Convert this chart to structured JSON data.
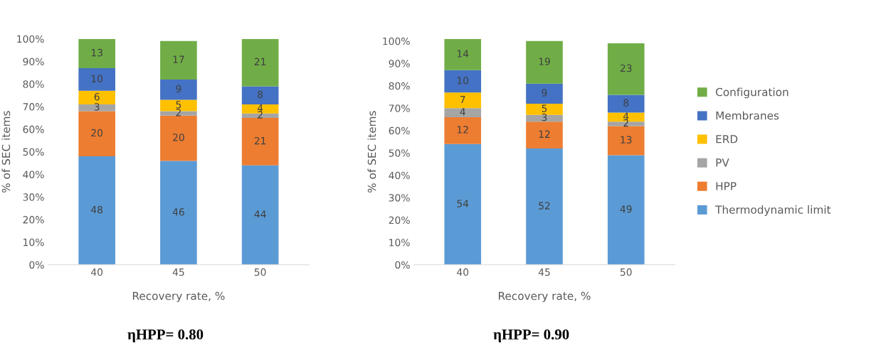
{
  "chart_data": [
    {
      "type": "bar",
      "stacked": true,
      "categories": [
        "40",
        "45",
        "50"
      ],
      "xlabel": "Recovery rate, %",
      "ylabel": "% of SEC items",
      "ylim": [
        0,
        100
      ],
      "yticks": [
        {
          "value": 0,
          "label": "0%"
        },
        {
          "value": 10,
          "label": "10%"
        },
        {
          "value": 20,
          "label": "20%"
        },
        {
          "value": 30,
          "label": "30%"
        },
        {
          "value": 40,
          "label": "40%"
        },
        {
          "value": 50,
          "label": "50%"
        },
        {
          "value": 60,
          "label": "60%"
        },
        {
          "value": 70,
          "label": "70%"
        },
        {
          "value": 80,
          "label": "80%"
        },
        {
          "value": 90,
          "label": "90%"
        },
        {
          "value": 100,
          "label": "100%"
        }
      ],
      "data_labels": true,
      "annotations": [
        "ηHPP= 0.80"
      ],
      "series": [
        {
          "color": "#5b9bd5",
          "values": [
            48,
            46,
            44
          ]
        },
        {
          "color": "#ed7d31",
          "values": [
            20,
            20,
            21
          ]
        },
        {
          "color": "#a5a5a5",
          "values": [
            3,
            2,
            2
          ]
        },
        {
          "color": "#ffc000",
          "values": [
            6,
            5,
            4
          ]
        },
        {
          "color": "#4472c4",
          "values": [
            10,
            9,
            8
          ]
        },
        {
          "color": "#70ad47",
          "values": [
            13,
            17,
            21
          ]
        }
      ]
    },
    {
      "type": "bar",
      "stacked": true,
      "categories": [
        "40",
        "45",
        "50"
      ],
      "xlabel": "Recovery rate, %",
      "ylabel": "% of SEC items",
      "ylim": [
        0,
        101
      ],
      "yticks": [
        {
          "value": 0,
          "label": "0%"
        },
        {
          "value": 10,
          "label": "10%"
        },
        {
          "value": 20,
          "label": "20%"
        },
        {
          "value": 30,
          "label": "30%"
        },
        {
          "value": 40,
          "label": "40%"
        },
        {
          "value": 50,
          "label": "50%"
        },
        {
          "value": 60,
          "label": "60%"
        },
        {
          "value": 70,
          "label": "70%"
        },
        {
          "value": 80,
          "label": "80%"
        },
        {
          "value": 90,
          "label": "90%"
        },
        {
          "value": 100,
          "label": "100%"
        }
      ],
      "data_labels": true,
      "legend": "right",
      "annotations": [
        "ηHPP= 0.90"
      ],
      "series": [
        {
          "name": "Thermodynamic limit",
          "color": "#5b9bd5",
          "values": [
            54,
            52,
            49
          ]
        },
        {
          "name": "HPP",
          "color": "#ed7d31",
          "values": [
            12,
            12,
            13
          ]
        },
        {
          "name": "PV",
          "color": "#a5a5a5",
          "values": [
            4,
            3,
            2
          ]
        },
        {
          "name": "ERD",
          "color": "#ffc000",
          "values": [
            7,
            5,
            4
          ]
        },
        {
          "name": "Membranes",
          "color": "#4472c4",
          "values": [
            10,
            9,
            8
          ]
        },
        {
          "name": "Configuration",
          "color": "#70ad47",
          "values": [
            14,
            19,
            23
          ]
        }
      ]
    }
  ]
}
